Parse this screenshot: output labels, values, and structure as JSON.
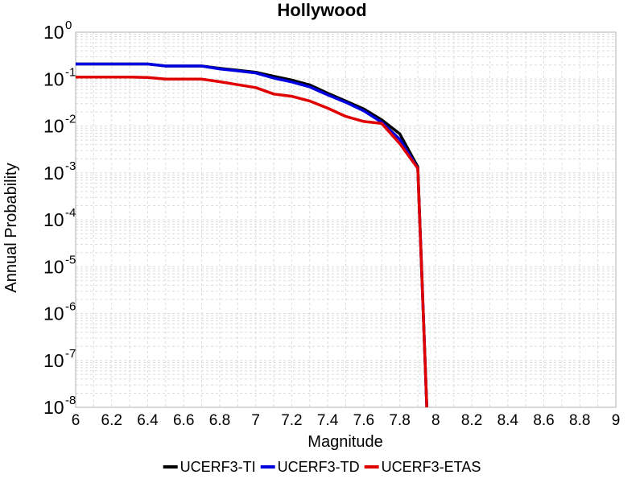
{
  "chart_data": {
    "type": "line",
    "title": "Hollywood",
    "xlabel": "Magnitude",
    "ylabel": "Annual Probability",
    "xlim": [
      6,
      9
    ],
    "ylim": [
      1e-08,
      1
    ],
    "yscale": "log",
    "grid": true,
    "legend_position": "bottom",
    "x_ticks": [
      "6",
      "6.2",
      "6.4",
      "6.6",
      "6.8",
      "7",
      "7.2",
      "7.4",
      "7.6",
      "7.8",
      "8",
      "8.2",
      "8.4",
      "8.6",
      "8.8",
      "9"
    ],
    "y_ticks": [
      {
        "base": "10",
        "exp": "0"
      },
      {
        "base": "10",
        "exp": "-1"
      },
      {
        "base": "10",
        "exp": "-2"
      },
      {
        "base": "10",
        "exp": "-3"
      },
      {
        "base": "10",
        "exp": "-4"
      },
      {
        "base": "10",
        "exp": "-5"
      },
      {
        "base": "10",
        "exp": "-6"
      },
      {
        "base": "10",
        "exp": "-7"
      },
      {
        "base": "10",
        "exp": "-8"
      }
    ],
    "series": [
      {
        "name": "UCERF3-TI",
        "color": "#000000",
        "x": [
          6.0,
          6.1,
          6.2,
          6.3,
          6.4,
          6.5,
          6.6,
          6.7,
          6.8,
          6.9,
          7.0,
          7.1,
          7.2,
          7.3,
          7.4,
          7.5,
          7.6,
          7.7,
          7.8,
          7.9,
          7.95
        ],
        "y": [
          0.21,
          0.21,
          0.21,
          0.21,
          0.21,
          0.19,
          0.19,
          0.19,
          0.17,
          0.155,
          0.14,
          0.115,
          0.095,
          0.075,
          0.05,
          0.034,
          0.023,
          0.0135,
          0.0068,
          0.00135,
          1e-08
        ]
      },
      {
        "name": "UCERF3-TD",
        "color": "#0000e0",
        "x": [
          6.0,
          6.1,
          6.2,
          6.3,
          6.4,
          6.5,
          6.6,
          6.7,
          6.8,
          6.9,
          7.0,
          7.1,
          7.2,
          7.3,
          7.4,
          7.5,
          7.6,
          7.7,
          7.8,
          7.9,
          7.95
        ],
        "y": [
          0.21,
          0.21,
          0.21,
          0.21,
          0.21,
          0.19,
          0.19,
          0.19,
          0.165,
          0.15,
          0.135,
          0.105,
          0.087,
          0.068,
          0.046,
          0.032,
          0.021,
          0.012,
          0.0052,
          0.00125,
          1e-08
        ]
      },
      {
        "name": "UCERF3-ETAS",
        "color": "#e00000",
        "x": [
          6.0,
          6.1,
          6.2,
          6.3,
          6.4,
          6.5,
          6.6,
          6.7,
          6.8,
          6.9,
          7.0,
          7.1,
          7.2,
          7.3,
          7.4,
          7.5,
          7.6,
          7.7,
          7.8,
          7.9,
          7.95
        ],
        "y": [
          0.11,
          0.11,
          0.11,
          0.11,
          0.108,
          0.1,
          0.1,
          0.1,
          0.088,
          0.076,
          0.066,
          0.048,
          0.043,
          0.034,
          0.024,
          0.016,
          0.0125,
          0.0113,
          0.0042,
          0.00125,
          1e-08
        ]
      }
    ]
  }
}
